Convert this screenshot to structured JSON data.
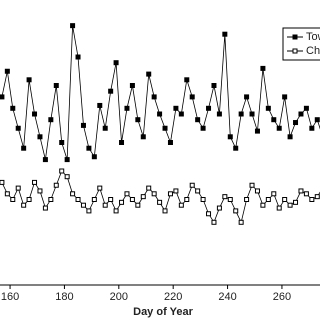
{
  "chart_data": {
    "type": "line",
    "x_label": "Day of Year",
    "x": [
      157,
      159,
      161,
      163,
      165,
      167,
      169,
      171,
      173,
      175,
      177,
      179,
      181,
      183,
      185,
      187,
      189,
      191,
      193,
      195,
      197,
      199,
      201,
      203,
      205,
      207,
      209,
      211,
      213,
      215,
      217,
      219,
      221,
      223,
      225,
      227,
      229,
      231,
      233,
      235,
      237,
      239,
      241,
      243,
      245,
      247,
      249,
      251,
      253,
      255,
      257,
      259,
      261,
      263,
      265,
      267,
      269,
      271,
      273,
      275
    ],
    "series": [
      {
        "name": "Tow",
        "color": "#000000",
        "marker": "filled-square",
        "values": [
          66,
          75,
          62,
          55,
          48,
          72,
          60,
          52,
          44,
          58,
          70,
          50,
          44,
          91,
          80,
          56,
          48,
          45,
          63,
          55,
          68,
          78,
          50,
          62,
          70,
          58,
          52,
          74,
          66,
          60,
          55,
          50,
          62,
          60,
          72,
          66,
          58,
          55,
          62,
          70,
          60,
          88,
          52,
          48,
          60,
          66,
          60,
          54,
          76,
          62,
          58,
          55,
          66,
          52,
          57,
          60,
          62,
          55,
          58,
          52
        ]
      },
      {
        "name": "Ch",
        "color": "#000000",
        "marker": "open-square",
        "values": [
          36,
          32,
          30,
          34,
          28,
          30,
          36,
          33,
          27,
          30,
          35,
          40,
          38,
          32,
          30,
          28,
          26,
          30,
          34,
          28,
          30,
          26,
          29,
          32,
          30,
          28,
          31,
          34,
          32,
          29,
          26,
          32,
          33,
          28,
          30,
          35,
          33,
          30,
          25,
          22,
          27,
          31,
          30,
          26,
          22,
          30,
          35,
          33,
          28,
          30,
          32,
          27,
          30,
          28,
          29,
          33,
          32,
          30,
          31,
          34
        ]
      }
    ],
    "xlim": [
      156.3,
      274
    ],
    "xticks": [
      160,
      180,
      200,
      220,
      240,
      260
    ],
    "ylim": [
      0,
      100
    ],
    "legend": "upper right"
  }
}
